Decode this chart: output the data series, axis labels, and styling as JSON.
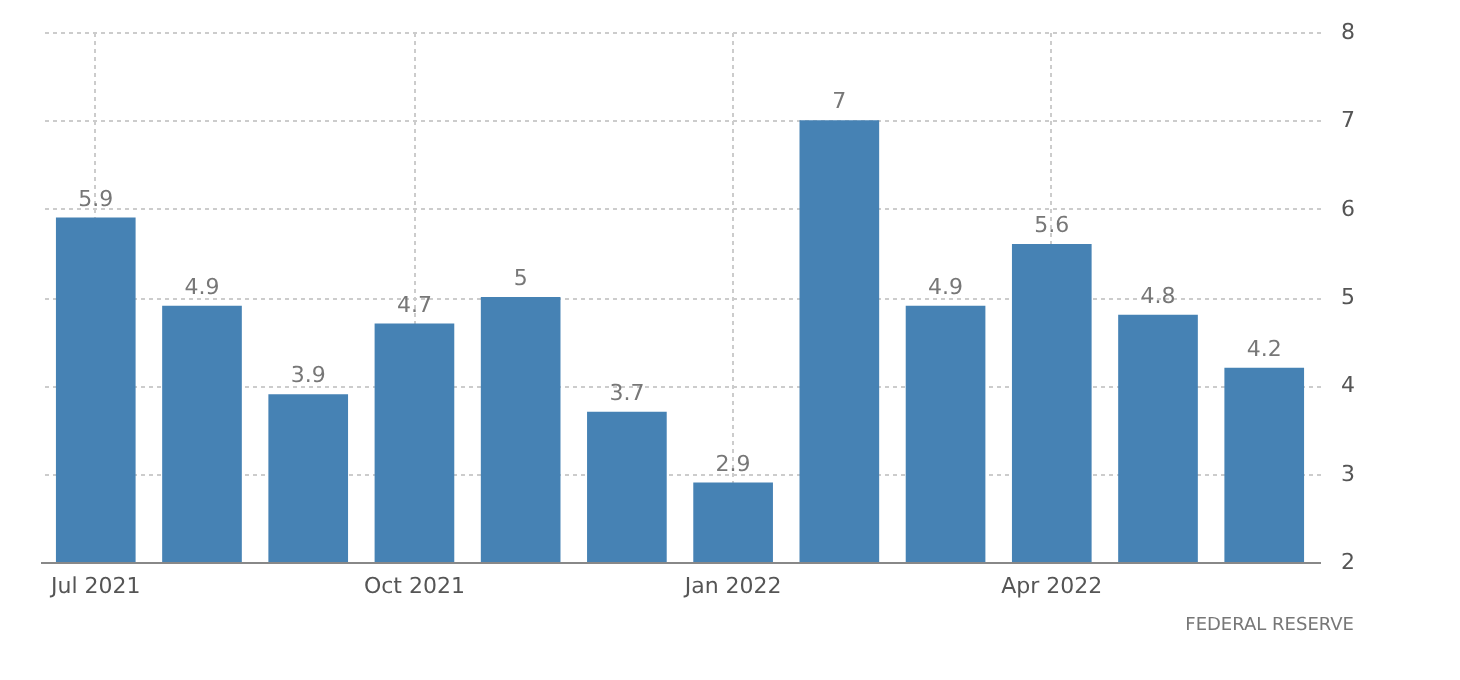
{
  "chart_data": {
    "type": "bar",
    "categories": [
      "Jul 2021",
      null,
      null,
      "Oct 2021",
      null,
      null,
      "Jan 2022",
      null,
      null,
      "Apr 2022",
      null,
      null
    ],
    "values": [
      5.9,
      4.9,
      3.9,
      4.7,
      5,
      3.7,
      2.9,
      7,
      4.9,
      5.6,
      4.8,
      4.2
    ],
    "color": "#4682b4",
    "ylim": [
      2,
      8
    ],
    "yticks": [
      2,
      3,
      4,
      5,
      6,
      7,
      8
    ],
    "grid": true,
    "data_labels": true,
    "annotations": [
      "FEDERAL RESERVE"
    ]
  }
}
